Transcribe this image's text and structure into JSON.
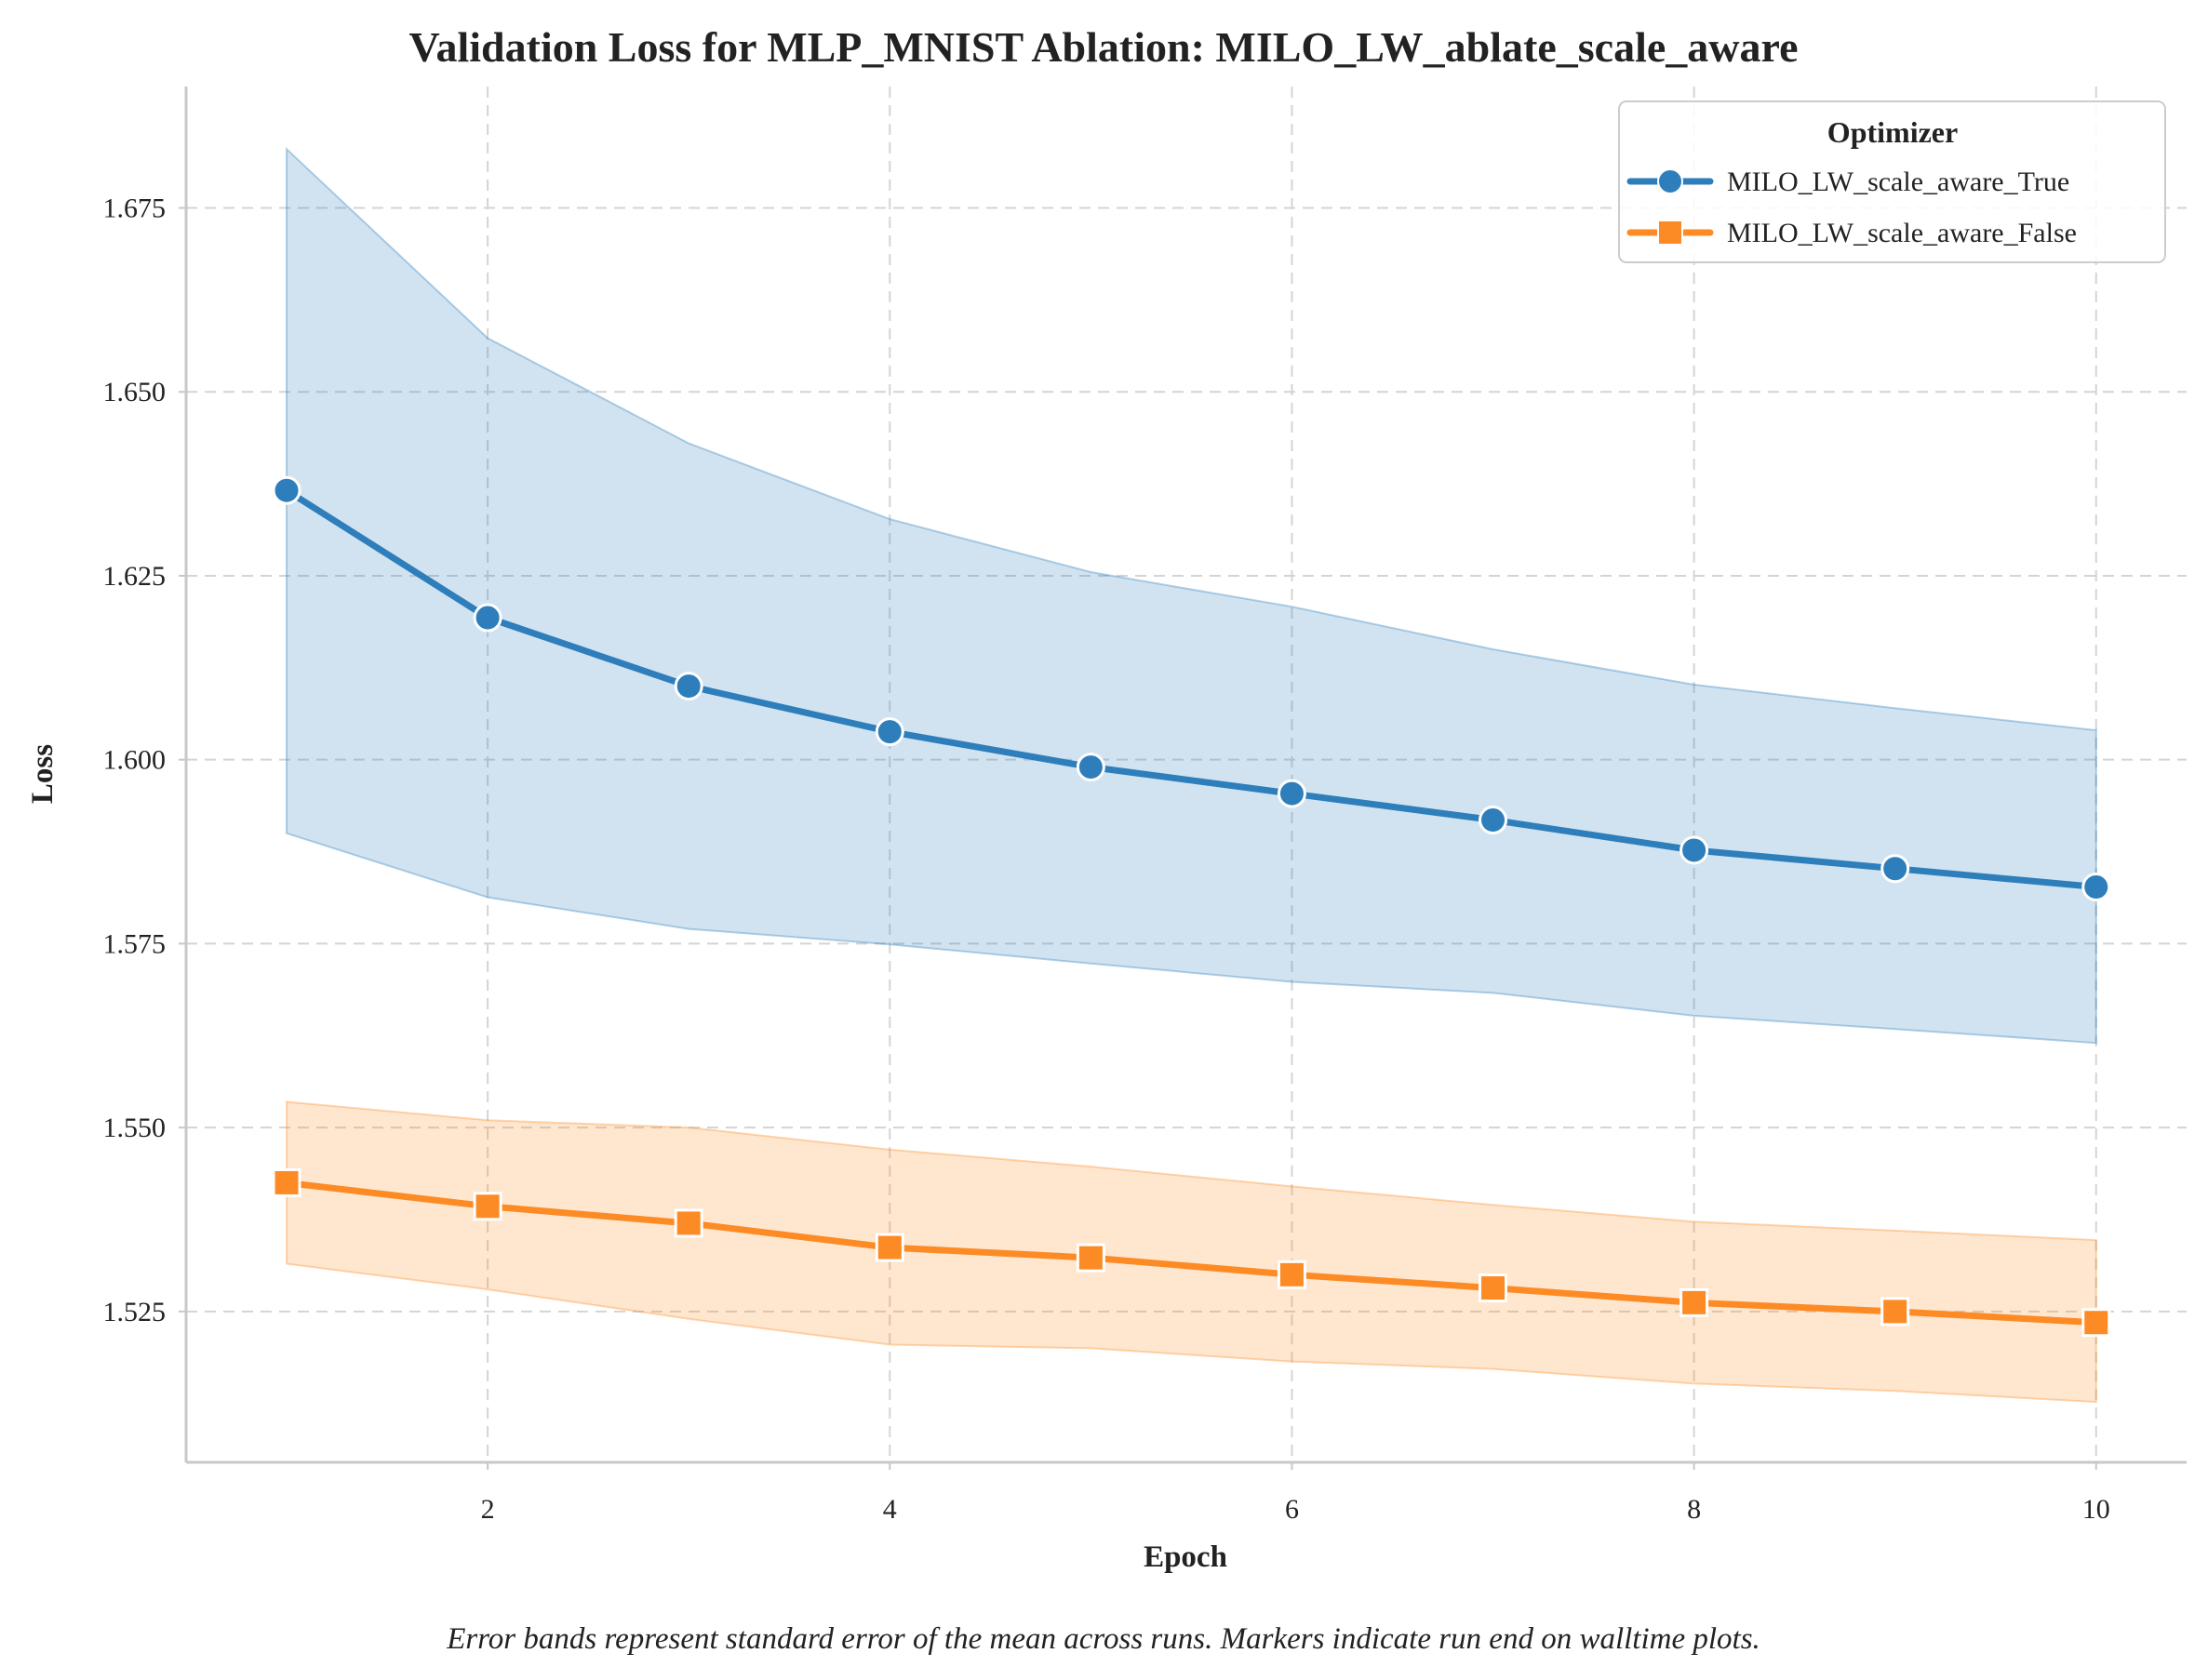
{
  "chart_data": {
    "type": "line",
    "title": "Validation Loss for MLP_MNIST Ablation: MILO_LW_ablate_scale_aware",
    "xlabel": "Epoch",
    "ylabel": "Loss",
    "xlim": [
      0.5,
      10.45
    ],
    "ylim": [
      1.5045,
      1.6915
    ],
    "xticks": [
      2,
      4,
      6,
      8,
      10
    ],
    "xtick_labels": [
      "2",
      "4",
      "6",
      "8",
      "10"
    ],
    "yticks": [
      1.525,
      1.55,
      1.575,
      1.6,
      1.625,
      1.65,
      1.675
    ],
    "ytick_labels": [
      "1.525",
      "1.550",
      "1.575",
      "1.600",
      "1.625",
      "1.650",
      "1.675"
    ],
    "grid": true,
    "legend": {
      "title": "Optimizer",
      "placement": "top-right"
    },
    "x": [
      1,
      2,
      3,
      4,
      5,
      6,
      7,
      8,
      9,
      10
    ],
    "series": [
      {
        "name": "MILO_LW_scale_aware_True",
        "color": "#2e7ebc",
        "band_color": "#2e7ebc",
        "marker": "circle",
        "values": [
          1.6366,
          1.6193,
          1.61,
          1.6038,
          1.599,
          1.5954,
          1.5918,
          1.5877,
          1.5852,
          1.5827
        ],
        "upper": [
          1.683,
          1.6573,
          1.643,
          1.6327,
          1.6255,
          1.6208,
          1.615,
          1.6102,
          1.607,
          1.604
        ],
        "lower": [
          1.59,
          1.5813,
          1.577,
          1.5749,
          1.5723,
          1.5698,
          1.5683,
          1.5652,
          1.5634,
          1.5615
        ]
      },
      {
        "name": "MILO_LW_scale_aware_False",
        "color": "#fd8b25",
        "band_color": "#fd8b25",
        "marker": "square",
        "values": [
          1.5425,
          1.5393,
          1.537,
          1.5337,
          1.5323,
          1.53,
          1.5282,
          1.5262,
          1.525,
          1.5235
        ],
        "upper": [
          1.5535,
          1.551,
          1.55,
          1.547,
          1.5447,
          1.542,
          1.5395,
          1.5372,
          1.536,
          1.5347
        ],
        "lower": [
          1.5315,
          1.528,
          1.524,
          1.5205,
          1.52,
          1.5182,
          1.5172,
          1.5152,
          1.5142,
          1.5127
        ]
      }
    ]
  },
  "caption": "Error bands represent standard error of the mean across runs. Markers indicate run end on walltime plots."
}
